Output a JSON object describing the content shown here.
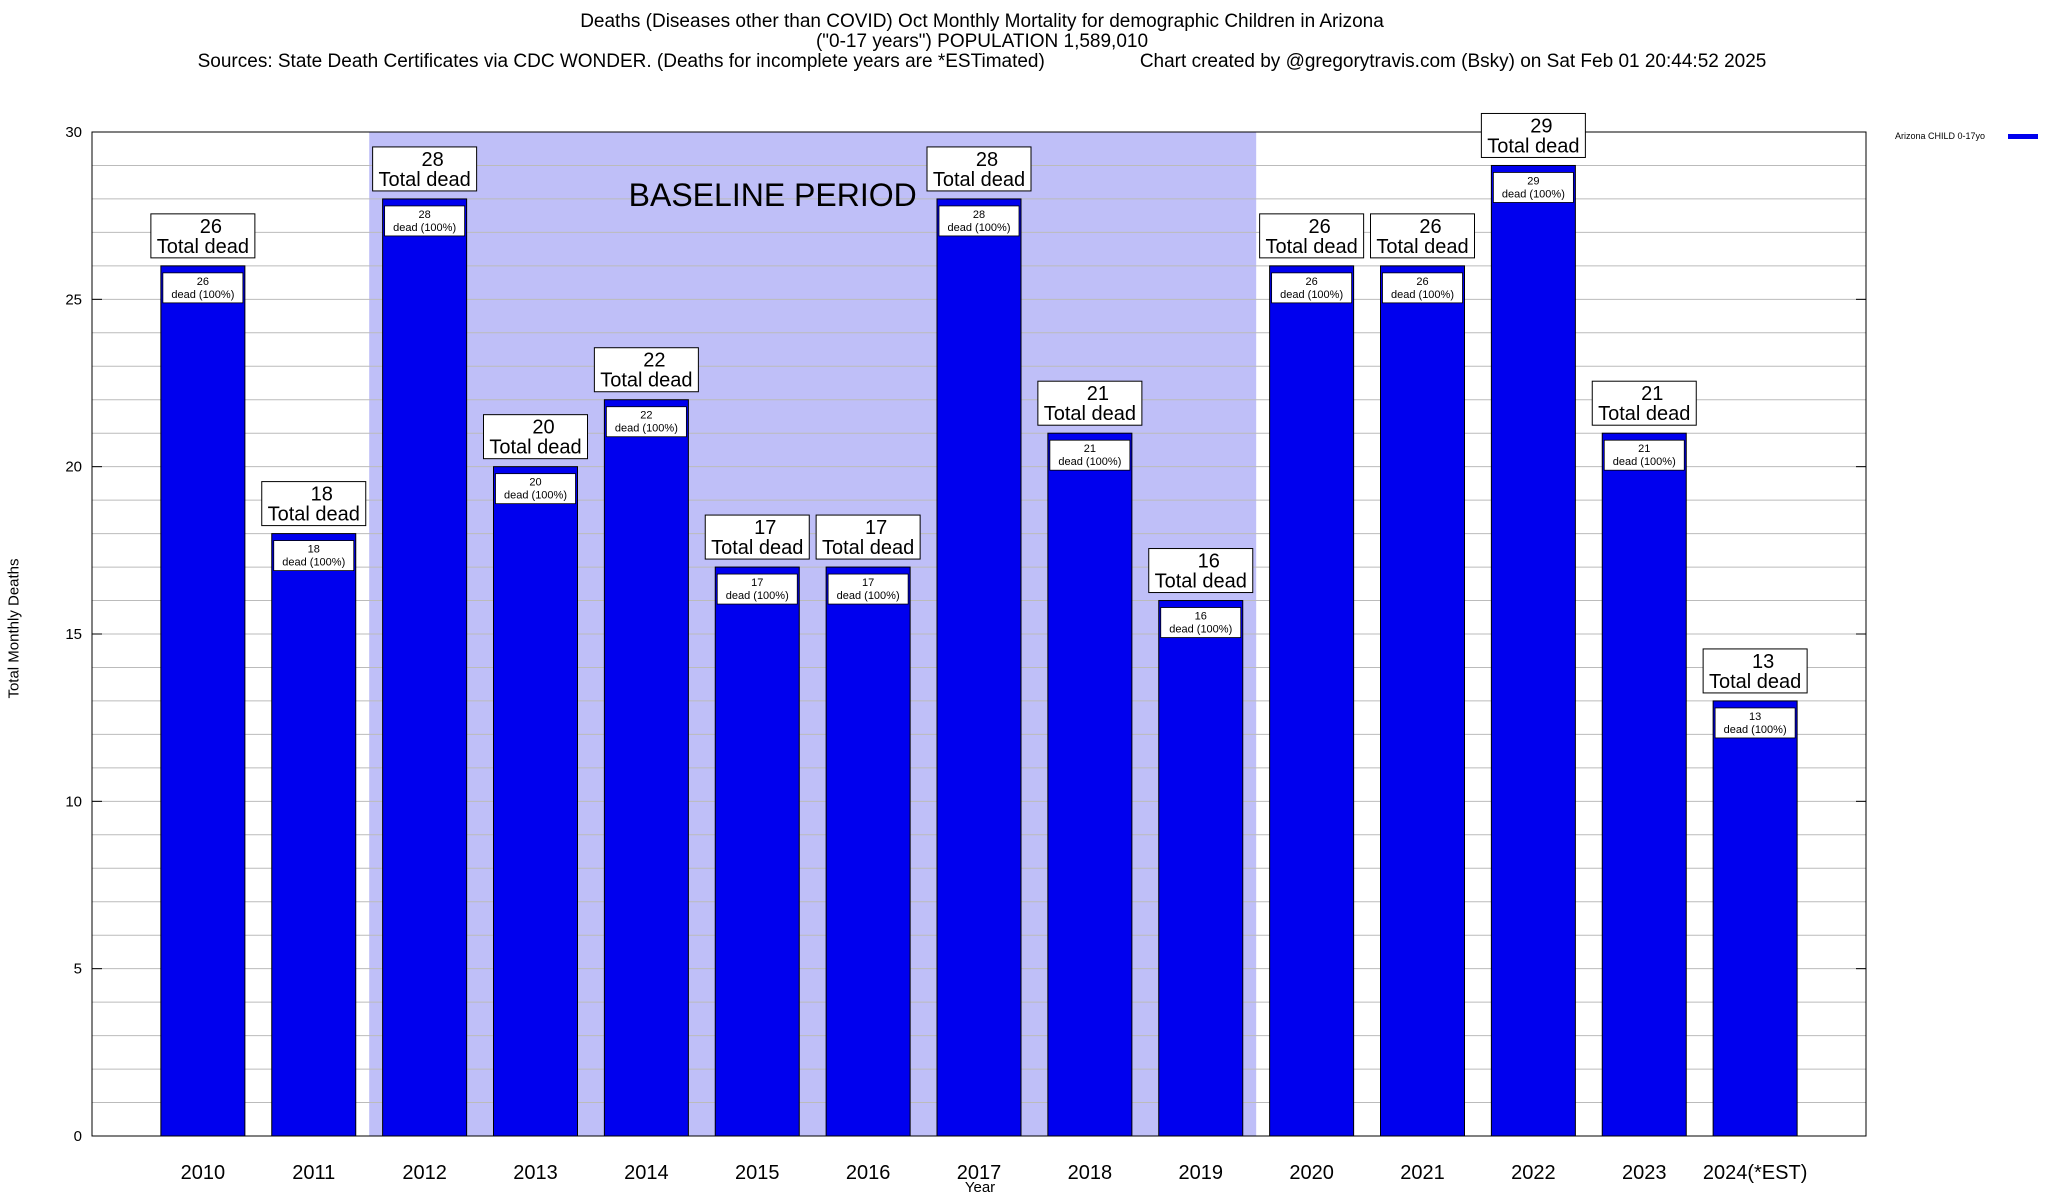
{
  "chart_data": {
    "type": "bar",
    "title_lines": [
      "Deaths (Diseases other than COVID) Oct Monthly Mortality for demographic Children in Arizona",
      "(\"0-17 years\") POPULATION 1,589,010"
    ],
    "sources_text": "Sources: State Death Certificates via CDC WONDER. (Deaths for incomplete years are *ESTimated)",
    "credit_text": "Chart created by @gregorytravis.com (Bsky) on Sat Feb 01 20:44:52 2025",
    "xlabel": "Year",
    "ylabel": "Total Monthly Deaths",
    "categories": [
      "2010",
      "2011",
      "2012",
      "2013",
      "2014",
      "2015",
      "2016",
      "2017",
      "2018",
      "2019",
      "2020",
      "2021",
      "2022",
      "2023",
      "2024(*EST)"
    ],
    "series": [
      {
        "name": "Arizona CHILD 0-17yo",
        "values": [
          26,
          18,
          28,
          20,
          22,
          17,
          17,
          28,
          21,
          16,
          26,
          26,
          29,
          21,
          13
        ]
      }
    ],
    "ylim": [
      0,
      30
    ],
    "yticks": [
      0,
      5,
      10,
      15,
      20,
      25,
      30
    ],
    "grid": true,
    "legend_position": "top-right",
    "bar_annotation_top": "Total dead",
    "bar_annotation_inner": "dead (100%)",
    "baseline_period": {
      "label": "BASELINE PERIOD",
      "from": "2012",
      "to": "2019"
    },
    "colors": {
      "bar": "#0000ee",
      "baseline_shade": "#bfbff8",
      "grid": "#bbbbbb"
    }
  }
}
